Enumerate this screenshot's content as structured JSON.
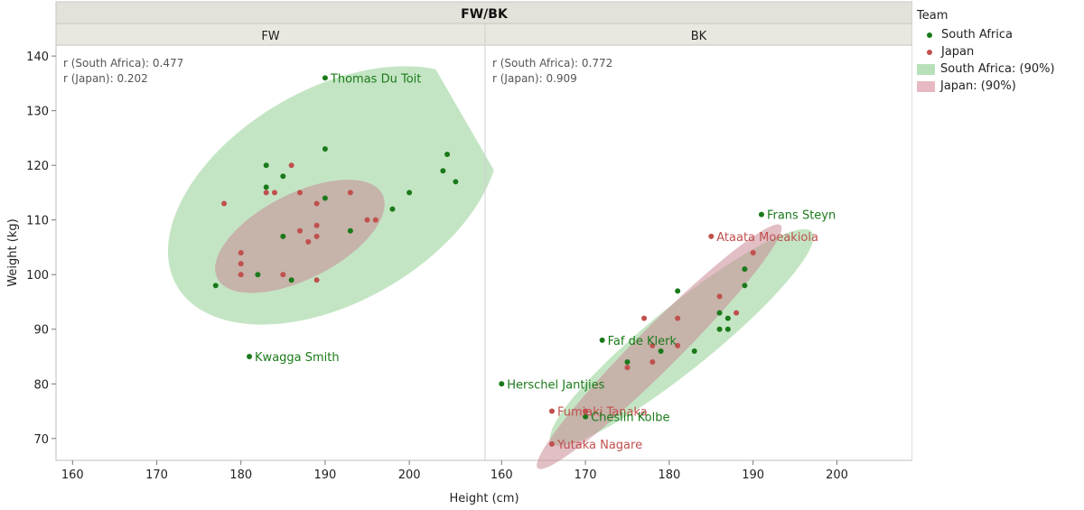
{
  "chart_data": {
    "type": "scatter",
    "title": "FW/BK",
    "xlabel": "Height (cm)",
    "ylabel": "Weight (kg)",
    "xlim": [
      159,
      209
    ],
    "ylim": [
      66,
      142
    ],
    "xticks": [
      160,
      170,
      180,
      190,
      200
    ],
    "yticks": [
      70,
      80,
      90,
      100,
      110,
      120,
      130,
      140
    ],
    "legend": {
      "title": "Team",
      "position": "right",
      "entries": [
        {
          "label": "South Africa",
          "kind": "point",
          "color": "#1a7a1a"
        },
        {
          "label": "Japan",
          "kind": "point",
          "color": "#c0504d"
        },
        {
          "label": "South Africa: (90%)",
          "kind": "ellipse",
          "color": "#b8e0b8"
        },
        {
          "label": "Japan: (90%)",
          "kind": "ellipse",
          "color": "#e6b9c3"
        }
      ]
    },
    "panels": [
      {
        "name": "FW",
        "stats": [
          "r (South Africa): 0.477",
          "r (Japan): 0.202"
        ],
        "series": [
          {
            "name": "South Africa",
            "color": "#1a7a1a",
            "points": [
              [
                190,
                136
              ],
              [
                190,
                123
              ],
              [
                204.5,
                122
              ],
              [
                183,
                120
              ],
              [
                185,
                118
              ],
              [
                204,
                119
              ],
              [
                205.5,
                117
              ],
              [
                183,
                116
              ],
              [
                200,
                115
              ],
              [
                190,
                114
              ],
              [
                198,
                112
              ],
              [
                193,
                108
              ],
              [
                185,
                107
              ],
              [
                182,
                100
              ],
              [
                186,
                99
              ],
              [
                177,
                98
              ],
              [
                181,
                85
              ]
            ]
          },
          {
            "name": "Japan",
            "color": "#c0504d",
            "points": [
              [
                186,
                120
              ],
              [
                178,
                113
              ],
              [
                183,
                115
              ],
              [
                184,
                115
              ],
              [
                187,
                115
              ],
              [
                189,
                113
              ],
              [
                193,
                115
              ],
              [
                195,
                110
              ],
              [
                196,
                110
              ],
              [
                187,
                108
              ],
              [
                189,
                109
              ],
              [
                189,
                107
              ],
              [
                188,
                106
              ],
              [
                180,
                104
              ],
              [
                180,
                102
              ],
              [
                180,
                100
              ],
              [
                185,
                100
              ],
              [
                189,
                99
              ]
            ]
          }
        ],
        "ellipses": [
          {
            "series": "South Africa",
            "cx": 191,
            "cy": 114.5,
            "rx_data": 21.5,
            "ry_data": 19.5,
            "angle_deg": -30
          },
          {
            "series": "Japan",
            "cx": 187,
            "cy": 107,
            "rx_data": 11,
            "ry_data": 7.8,
            "angle_deg": -27
          }
        ],
        "labels": [
          {
            "text": "Thomas Du Toit",
            "x": 190,
            "y": 136,
            "series": "South Africa"
          },
          {
            "text": "Kwagga Smith",
            "x": 181,
            "y": 85,
            "series": "South Africa"
          }
        ]
      },
      {
        "name": "BK",
        "stats": [
          "r (South Africa): 0.772",
          "r (Japan): 0.909"
        ],
        "series": [
          {
            "name": "South Africa",
            "color": "#1a7a1a",
            "points": [
              [
                191,
                111
              ],
              [
                189,
                101
              ],
              [
                189,
                98
              ],
              [
                181,
                97
              ],
              [
                186,
                93
              ],
              [
                187,
                92
              ],
              [
                186,
                90
              ],
              [
                187,
                90
              ],
              [
                172,
                88
              ],
              [
                179,
                86
              ],
              [
                183,
                86
              ],
              [
                175,
                84
              ],
              [
                160,
                80
              ],
              [
                170,
                74
              ]
            ]
          },
          {
            "name": "Japan",
            "color": "#c0504d",
            "points": [
              [
                185,
                107
              ],
              [
                190,
                104
              ],
              [
                186,
                96
              ],
              [
                188,
                93
              ],
              [
                177,
                92
              ],
              [
                181,
                92
              ],
              [
                178,
                87
              ],
              [
                181,
                87
              ],
              [
                178,
                84
              ],
              [
                175,
                83
              ],
              [
                166,
                75
              ],
              [
                170,
                75
              ],
              [
                166,
                69
              ]
            ]
          }
        ],
        "ellipses": [
          {
            "series": "South Africa",
            "cx": 181.5,
            "cy": 88.5,
            "rx_data": 20,
            "ry_data": 5.8,
            "angle_deg": -39
          },
          {
            "series": "Japan",
            "cx": 178.8,
            "cy": 86.8,
            "rx_data": 20.5,
            "ry_data": 3.9,
            "angle_deg": -45
          }
        ],
        "labels": [
          {
            "text": "Frans Steyn",
            "x": 191,
            "y": 111,
            "series": "South Africa"
          },
          {
            "text": "Ataata Moeakiola",
            "x": 185,
            "y": 107,
            "series": "Japan"
          },
          {
            "text": "Faf de Klerk",
            "x": 172,
            "y": 88,
            "series": "South Africa"
          },
          {
            "text": "Herschel Jantjies",
            "x": 160,
            "y": 80,
            "series": "South Africa"
          },
          {
            "text": "Fumiaki Tanaka",
            "x": 166,
            "y": 75,
            "series": "Japan"
          },
          {
            "text": "Cheslin Kolbe",
            "x": 170,
            "y": 74,
            "series": "South Africa"
          },
          {
            "text": "Yutaka Nagare",
            "x": 166,
            "y": 69,
            "series": "Japan"
          }
        ]
      }
    ]
  }
}
